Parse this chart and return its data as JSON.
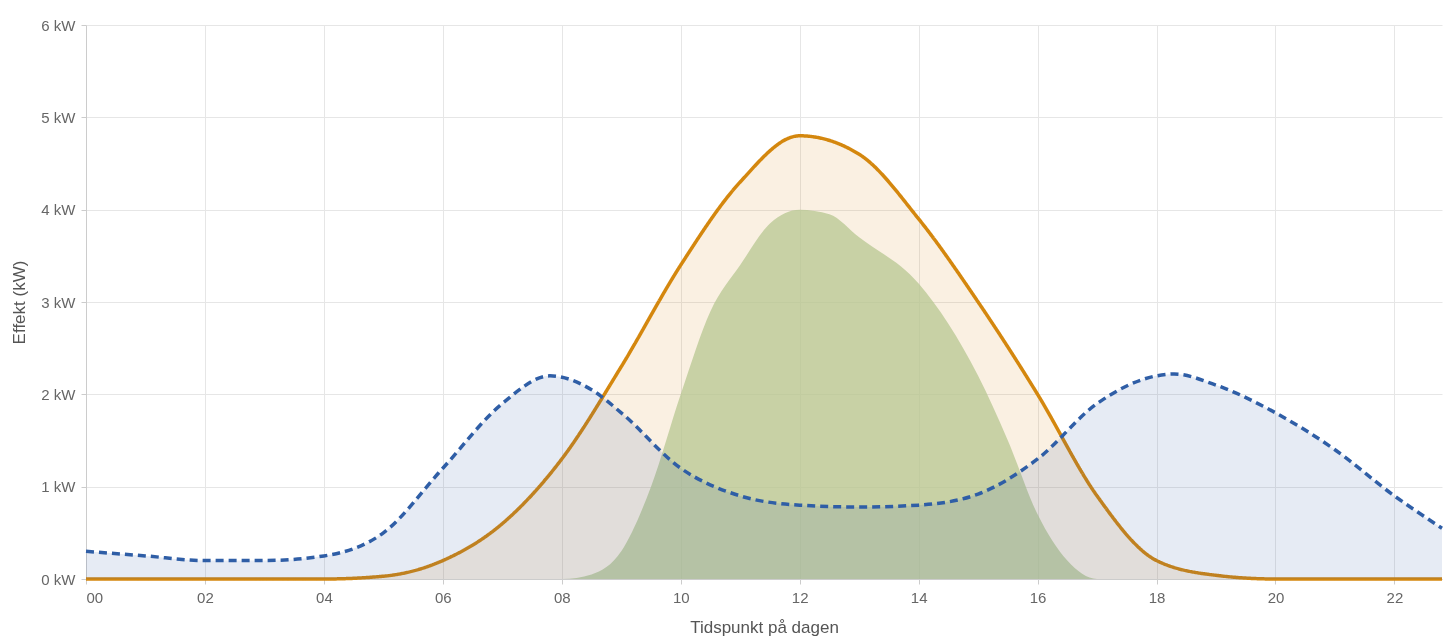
{
  "chart_data": {
    "type": "area",
    "xlabel": "Tidspunkt på dagen",
    "ylabel": "Effekt (kW)",
    "xlim": [
      0,
      22.8
    ],
    "ylim": [
      0,
      6
    ],
    "grid": true,
    "xticks": [
      {
        "value": 0,
        "label": "00"
      },
      {
        "value": 2,
        "label": "02"
      },
      {
        "value": 4,
        "label": "04"
      },
      {
        "value": 6,
        "label": "06"
      },
      {
        "value": 8,
        "label": "08"
      },
      {
        "value": 10,
        "label": "10"
      },
      {
        "value": 12,
        "label": "12"
      },
      {
        "value": 14,
        "label": "14"
      },
      {
        "value": 16,
        "label": "16"
      },
      {
        "value": 18,
        "label": "18"
      },
      {
        "value": 20,
        "label": "20"
      },
      {
        "value": 22,
        "label": "22"
      }
    ],
    "yticks": [
      {
        "value": 0,
        "label": "0 kW"
      },
      {
        "value": 1,
        "label": "1 kW"
      },
      {
        "value": 2,
        "label": "2 kW"
      },
      {
        "value": 3,
        "label": "3 kW"
      },
      {
        "value": 4,
        "label": "4 kW"
      },
      {
        "value": 5,
        "label": "5 kW"
      },
      {
        "value": 6,
        "label": "6 kW"
      }
    ],
    "series": [
      {
        "color": "#2f5ea6",
        "line_style": "dashed",
        "x": [
          0,
          1,
          2,
          3,
          4,
          5,
          6,
          7,
          7.8,
          8.5,
          9,
          10,
          11,
          12,
          13,
          14,
          15,
          16,
          17,
          18,
          18.3,
          19,
          20,
          21,
          22,
          22.8
        ],
        "values": [
          0.3,
          0.25,
          0.2,
          0.2,
          0.25,
          0.5,
          1.2,
          1.9,
          2.2,
          2.05,
          1.8,
          1.2,
          0.9,
          0.8,
          0.78,
          0.8,
          0.92,
          1.3,
          1.9,
          2.2,
          2.22,
          2.1,
          1.8,
          1.4,
          0.9,
          0.55
        ]
      },
      {
        "color": "#d4870e",
        "line_style": "solid",
        "x": [
          0,
          4,
          5,
          6,
          7,
          8,
          9,
          10,
          11,
          12,
          13,
          14,
          15,
          16,
          17,
          18,
          19,
          20,
          22.8
        ],
        "values": [
          0,
          0,
          0.03,
          0.2,
          0.6,
          1.3,
          2.3,
          3.4,
          4.3,
          4.8,
          4.6,
          3.9,
          3.0,
          2.0,
          0.9,
          0.2,
          0.04,
          0,
          0
        ]
      },
      {
        "color": "#b3d0a3",
        "line_style": "none",
        "x": [
          0,
          8,
          8.5,
          9,
          9.5,
          10,
          10.5,
          11,
          11.5,
          12,
          12.5,
          13,
          14,
          15,
          15.5,
          16,
          16.5,
          17,
          22.8
        ],
        "values": [
          0,
          0,
          0.05,
          0.3,
          1.0,
          2.0,
          2.9,
          3.4,
          3.85,
          4.0,
          3.95,
          3.7,
          3.2,
          2.2,
          1.5,
          0.7,
          0.2,
          0,
          0
        ]
      }
    ]
  }
}
